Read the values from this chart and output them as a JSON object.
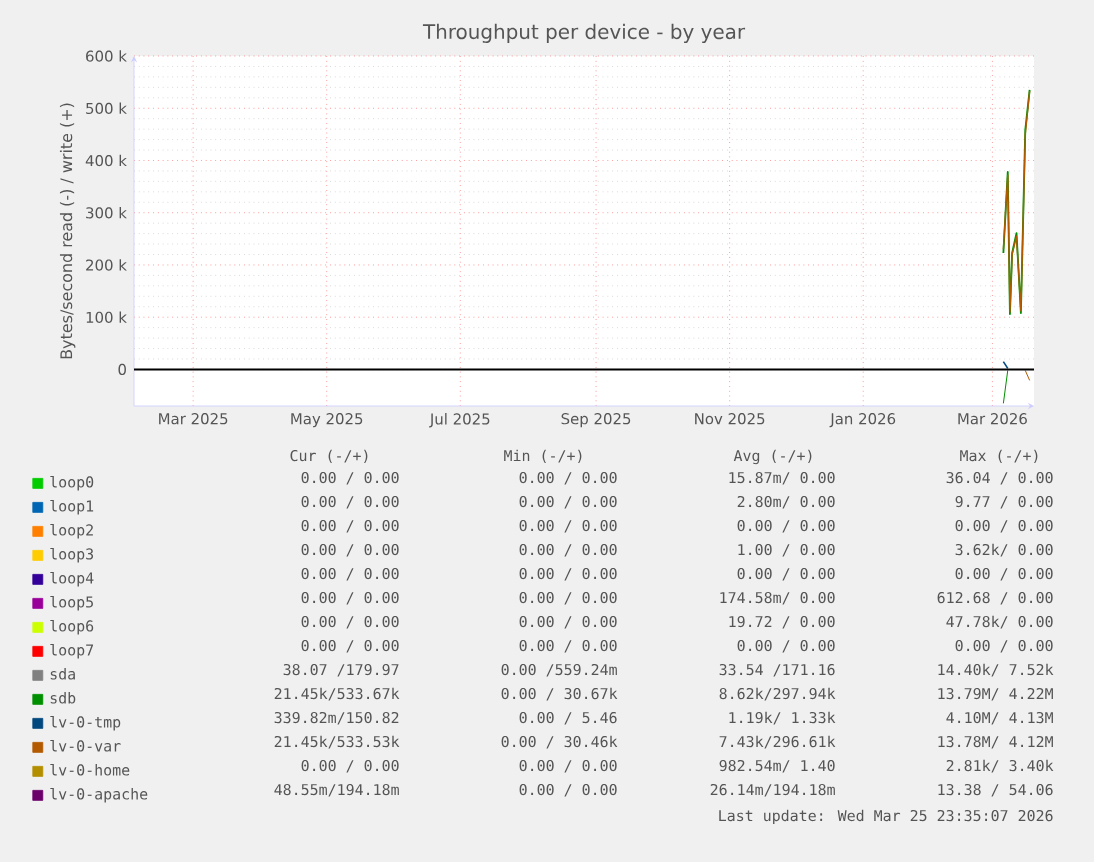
{
  "chart_data": {
    "type": "line",
    "title": "Throughput per device - by year",
    "ylabel": "Bytes/second read (-) / write (+)",
    "x": [
      "2026-03-06",
      "2026-03-08",
      "2026-03-09",
      "2026-03-10",
      "2026-03-12",
      "2026-03-14",
      "2026-03-16",
      "2026-03-18"
    ],
    "xlim": [
      "2025-02-02",
      "2026-03-20"
    ],
    "xticks": [
      {
        "value": "2025-03-01",
        "label": "Mar 2025"
      },
      {
        "value": "2025-05-01",
        "label": "May 2025"
      },
      {
        "value": "2025-07-01",
        "label": "Jul 2025"
      },
      {
        "value": "2025-09-01",
        "label": "Sep 2025"
      },
      {
        "value": "2025-11-01",
        "label": "Nov 2025"
      },
      {
        "value": "2026-01-01",
        "label": "Jan 2026"
      },
      {
        "value": "2026-03-01",
        "label": "Mar 2026"
      }
    ],
    "ylim": [
      -70000,
      600000
    ],
    "yticks": [
      0,
      {
        "value": 100000,
        "label": "100 k"
      },
      {
        "value": 200000,
        "label": "200 k"
      },
      {
        "value": 300000,
        "label": "300 k"
      },
      {
        "value": 400000,
        "label": "400 k"
      },
      {
        "value": 500000,
        "label": "500 k"
      },
      {
        "value": 600000,
        "label": "600 k"
      }
    ],
    "grid": true,
    "legend": "bottom",
    "ref_lines": [
      {
        "axis": "y",
        "value": 0,
        "color": "#000000"
      }
    ],
    "series": [
      {
        "name": "loop0",
        "color": "#00cc00",
        "values": [
          null,
          null,
          null,
          null,
          null,
          null,
          null,
          null
        ]
      },
      {
        "name": "loop1",
        "color": "#0066b3",
        "values": [
          null,
          null,
          null,
          null,
          null,
          null,
          null,
          null
        ]
      },
      {
        "name": "loop2",
        "color": "#ff8000",
        "values": [
          null,
          null,
          null,
          null,
          null,
          null,
          null,
          null
        ]
      },
      {
        "name": "loop3",
        "color": "#ffcc00",
        "values": [
          null,
          null,
          null,
          null,
          null,
          null,
          null,
          null
        ]
      },
      {
        "name": "loop4",
        "color": "#330099",
        "values": [
          null,
          null,
          null,
          null,
          null,
          null,
          null,
          null
        ]
      },
      {
        "name": "loop5",
        "color": "#990099",
        "values": [
          null,
          null,
          null,
          null,
          null,
          null,
          null,
          null
        ]
      },
      {
        "name": "loop6",
        "color": "#ccff00",
        "values": [
          null,
          null,
          null,
          null,
          null,
          null,
          null,
          null
        ]
      },
      {
        "name": "loop7",
        "color": "#ff0000",
        "values": [
          null,
          null,
          null,
          null,
          null,
          null,
          null,
          null
        ]
      },
      {
        "name": "sda",
        "color": "#808080",
        "values": [
          null,
          null,
          null,
          null,
          null,
          null,
          null,
          null
        ]
      },
      {
        "name": "sdb",
        "color": "#008f00",
        "values": [
          223000,
          378000,
          106000,
          223000,
          261000,
          108000,
          458000,
          535000
        ]
      },
      {
        "name": "lv-0-tmp",
        "color": "#00487d",
        "values": [
          15000,
          2000,
          null,
          null,
          null,
          null,
          null,
          null
        ]
      },
      {
        "name": "lv-0-var",
        "color": "#b35a00",
        "values": [
          230000,
          372000,
          110000,
          220000,
          255000,
          112000,
          450000,
          533000
        ]
      },
      {
        "name": "lv-0-home",
        "color": "#b38f00",
        "values": [
          null,
          null,
          null,
          null,
          null,
          null,
          null,
          null
        ]
      },
      {
        "name": "lv-0-apache",
        "color": "#6b006b",
        "values": [
          null,
          null,
          null,
          null,
          null,
          null,
          null,
          null
        ]
      },
      {
        "color": "#008f00",
        "values": [
          -65000,
          -2000,
          null,
          null,
          null,
          null,
          null,
          null
        ]
      },
      {
        "color": "#b35a00",
        "values": [
          null,
          null,
          null,
          null,
          null,
          null,
          -2000,
          -21000
        ]
      }
    ],
    "annotations": [
      "Cur (-/+)",
      "Min (-/+)",
      "Avg (-/+)",
      "Max (-/+)",
      "0.00 / 0.00",
      "0.00 / 0.00",
      "15.87m/ 0.00",
      "36.04 / 0.00",
      "0.00 / 0.00",
      "0.00 / 0.00",
      "2.80m/ 0.00",
      "9.77 / 0.00",
      "0.00 / 0.00",
      "0.00 / 0.00",
      "0.00 / 0.00",
      "0.00 / 0.00",
      "0.00 / 0.00",
      "0.00 / 0.00",
      "1.00 / 0.00",
      "3.62k/ 0.00",
      "0.00 / 0.00",
      "0.00 / 0.00",
      "0.00 / 0.00",
      "0.00 / 0.00",
      "0.00 / 0.00",
      "0.00 / 0.00",
      "174.58m/ 0.00",
      "612.68 / 0.00",
      "0.00 / 0.00",
      "0.00 / 0.00",
      "19.72 / 0.00",
      "47.78k/ 0.00",
      "0.00 / 0.00",
      "0.00 / 0.00",
      "0.00 / 0.00",
      "0.00 / 0.00",
      "38.07 /179.97",
      "0.00 /559.24m",
      "33.54 /171.16",
      "14.40k/ 7.52k",
      "21.45k/533.67k",
      "0.00 / 30.67k",
      "8.62k/297.94k",
      "13.79M/ 4.22M",
      "339.82m/150.82",
      "0.00 / 5.46",
      "1.19k/ 1.33k",
      "4.10M/ 4.13M",
      "21.45k/533.53k",
      "0.00 / 30.46k",
      "7.43k/296.61k",
      "13.78M/ 4.12M",
      "0.00 / 0.00",
      "0.00 / 0.00",
      "982.54m/ 1.40",
      "2.81k/ 3.40k",
      "48.55m/194.18m",
      "0.00 / 0.00",
      "26.14m/194.18m",
      "13.38 / 54.06",
      "Last update: Wed Mar 25 23:35:07 2026"
    ]
  }
}
